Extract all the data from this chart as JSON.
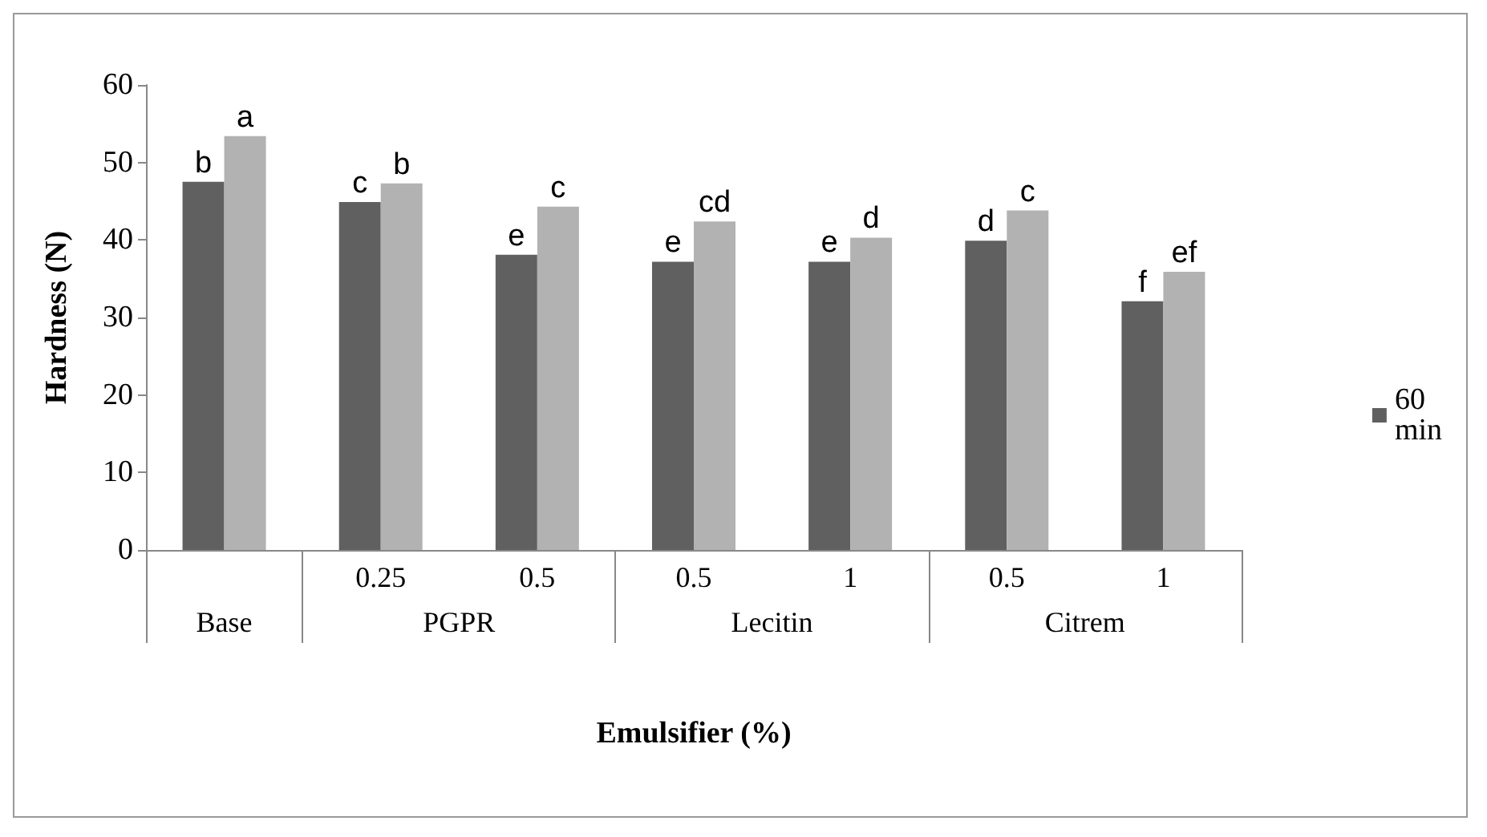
{
  "chart_data": {
    "type": "bar",
    "xlabel": "Emulsifier (%)",
    "ylabel": "Hardness (N)",
    "categories": [
      null,
      "0.25",
      "0.5",
      "0.5",
      "1",
      "0.5",
      "1"
    ],
    "annotations": [
      "Base",
      "PGPR",
      "Lecitin",
      "Citrem"
    ],
    "series": [
      {
        "name": "60 min",
        "color": "#606060",
        "values": [
          47.5,
          44.9,
          38.1,
          37.2,
          37.2,
          39.9,
          32.1
        ],
        "value_labels": [
          "b",
          "c",
          "e",
          "e",
          "e",
          "d",
          "f"
        ]
      },
      {
        "color": "#b2b2b2",
        "values": [
          53.4,
          47.3,
          44.3,
          42.4,
          40.3,
          43.8,
          35.9
        ],
        "value_labels": [
          "a",
          "b",
          "c",
          "cd",
          "d",
          "c",
          "ef"
        ]
      }
    ],
    "ylim": [
      0,
      60
    ],
    "yticks": [
      0,
      10,
      20,
      30,
      40,
      50,
      60
    ],
    "grid": false,
    "legend": "right"
  }
}
